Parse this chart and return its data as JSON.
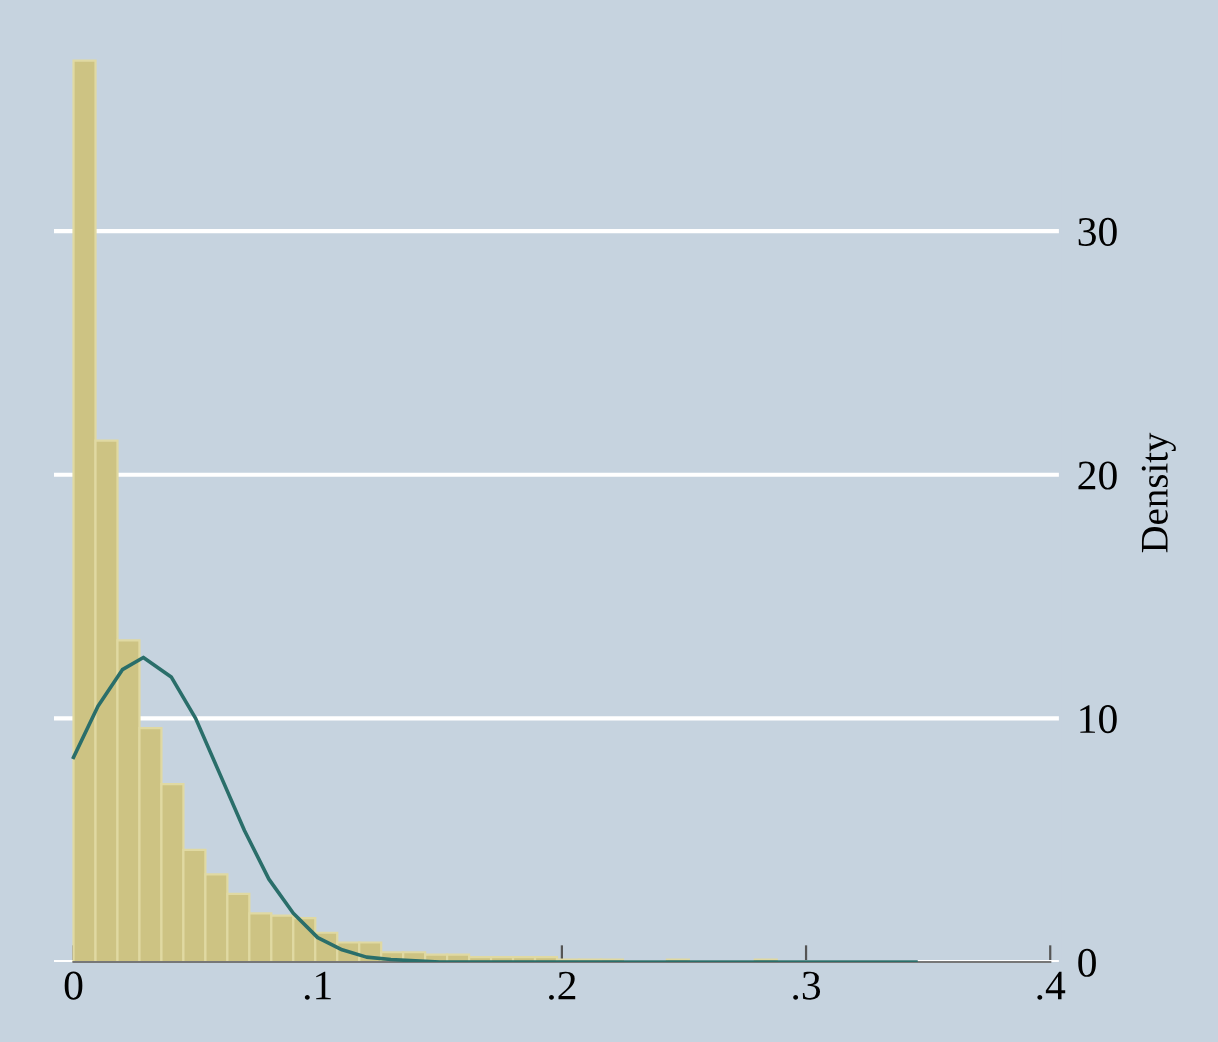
{
  "chart_data": {
    "type": "histogram",
    "ylabel": "Density",
    "bins": [
      0,
      0.009,
      0.018,
      0.027,
      0.036,
      0.045,
      0.054,
      0.063,
      0.072,
      0.081,
      0.09,
      0.099,
      0.108,
      0.117,
      0.126,
      0.135,
      0.144,
      0.153,
      0.162,
      0.171,
      0.18,
      0.189,
      0.198,
      0.207,
      0.216,
      0.225,
      0.234,
      0.243,
      0.252,
      0.261,
      0.27,
      0.279,
      0.288,
      0.297,
      0.306,
      0.315,
      0.324,
      0.333,
      0.342
    ],
    "values": [
      37.0,
      21.4,
      13.2,
      9.6,
      7.3,
      4.6,
      3.6,
      2.8,
      2.0,
      1.9,
      1.8,
      1.2,
      0.8,
      0.8,
      0.4,
      0.4,
      0.3,
      0.3,
      0.2,
      0.2,
      0.2,
      0.2,
      0.1,
      0.1,
      0.1,
      null,
      null,
      0.1,
      null,
      null,
      null,
      0.1,
      null,
      null,
      null,
      null,
      null,
      null
    ],
    "color": "#cdc383",
    "series": [
      {
        "type": "line",
        "color": "#2a6e6a",
        "x": [
          0,
          0.01,
          0.02,
          0.0286,
          0.04,
          0.05,
          0.06,
          0.07,
          0.08,
          0.09,
          0.1,
          0.11,
          0.12,
          0.13,
          0.15,
          0.2,
          0.345
        ],
        "values": [
          8.4,
          10.5,
          12.0,
          12.5,
          11.7,
          10.0,
          7.7,
          5.4,
          3.4,
          2.0,
          1.0,
          0.5,
          0.2,
          0.1,
          0,
          0,
          0
        ]
      }
    ],
    "xlim": [
      -0.008,
      0.404
    ],
    "ylim": [
      0,
      38.5
    ],
    "xticks": [
      0,
      {
        "value": 0.1,
        "label": ".1"
      },
      {
        "value": 0.2,
        "label": ".2"
      },
      {
        "value": 0.3,
        "label": ".3"
      },
      {
        "value": 0.4,
        "label": ".4"
      }
    ],
    "yticks": [
      0,
      10,
      20,
      30
    ],
    "grid": "y"
  }
}
